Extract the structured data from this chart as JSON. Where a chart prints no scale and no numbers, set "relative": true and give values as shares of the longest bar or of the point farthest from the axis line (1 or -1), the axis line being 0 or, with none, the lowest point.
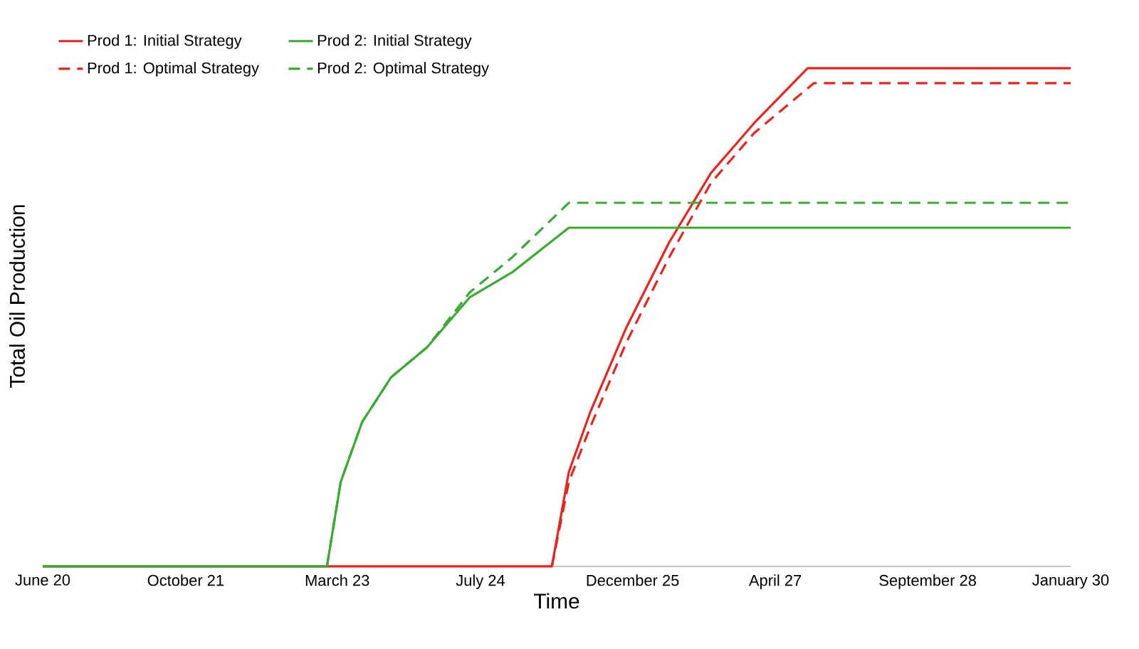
{
  "chart_data": {
    "type": "line",
    "relative": true,
    "xlabel": "Time",
    "ylabel": "Total Oil Production",
    "xlim": [
      "2020-06",
      "2030-01"
    ],
    "xticks": [
      {
        "value": "2020-06",
        "label": "June 20"
      },
      {
        "value": "2021-10",
        "label": "October 21"
      },
      {
        "value": "2023-03",
        "label": "March 23"
      },
      {
        "value": "2024-07",
        "label": "July 24"
      },
      {
        "value": "2025-12",
        "label": "December 25"
      },
      {
        "value": "2027-04",
        "label": "April 27"
      },
      {
        "value": "2028-09",
        "label": "September 28"
      },
      {
        "value": "2030-01",
        "label": "January 30"
      }
    ],
    "legend": "top left",
    "marker": "none",
    "series": [
      {
        "name": "Prod 1: Initial Strategy",
        "color": "#e8251f",
        "line_style": "solid",
        "x": [
          "2020-06-01",
          "2025-03-01",
          "2025-04-28",
          "2025-07-10",
          "2025-11-10",
          "2026-04-04",
          "2026-08-25",
          "2027-01-19",
          "2027-07-20",
          "2030-01-01"
        ],
        "values": [
          0,
          0,
          0.19,
          0.31,
          0.48,
          0.65,
          0.79,
          0.89,
          1.0,
          1.0
        ]
      },
      {
        "name": "Prod 2: Initial Strategy",
        "color": "#3aaa35",
        "line_style": "solid",
        "x": [
          "2020-06-01",
          "2023-01-25",
          "2023-03-13",
          "2023-05-25",
          "2023-09-01",
          "2024-01-01",
          "2024-05-25",
          "2024-10-16",
          "2025-04-28",
          "2030-01-01"
        ],
        "values": [
          0,
          0,
          0.17,
          0.29,
          0.38,
          0.44,
          0.54,
          0.59,
          0.68,
          0.68
        ]
      },
      {
        "name": "Prod 1: Optimal Strategy",
        "color": "#e8251f",
        "line_style": "dashed",
        "x": [
          "2025-03-01",
          "2025-04-28",
          "2025-07-10",
          "2025-11-10",
          "2026-04-04",
          "2026-08-25",
          "2027-01-19",
          "2027-08-10",
          "2030-01-01"
        ],
        "values": [
          0,
          0.17,
          0.28,
          0.45,
          0.62,
          0.77,
          0.87,
          0.97,
          0.97
        ]
      },
      {
        "name": "Prod 2: Optimal Strategy",
        "color": "#3aaa35",
        "line_style": "dashed",
        "x": [
          "2023-01-25",
          "2023-03-13",
          "2023-05-25",
          "2023-09-01",
          "2024-01-01",
          "2024-05-25",
          "2024-10-16",
          "2025-04-28",
          "2030-01-01"
        ],
        "values": [
          0,
          0.17,
          0.29,
          0.38,
          0.44,
          0.55,
          0.62,
          0.73,
          0.73
        ]
      }
    ]
  }
}
